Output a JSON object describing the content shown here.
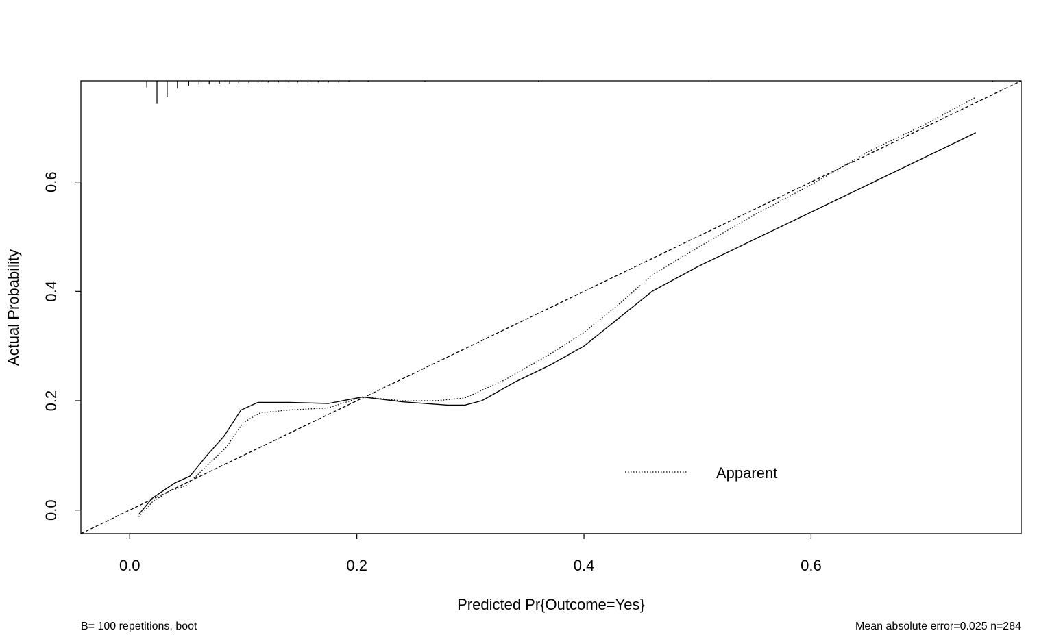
{
  "chart_data": {
    "type": "line",
    "title": "",
    "xlabel": "Predicted Pr{Outcome=Yes}",
    "ylabel": "Actual Probability",
    "xlim": [
      -0.043,
      0.785
    ],
    "ylim": [
      -0.043,
      0.785
    ],
    "x_ticks": [
      0.0,
      0.2,
      0.4,
      0.6
    ],
    "x_tick_labels": [
      "0.0",
      "0.2",
      "0.4",
      "0.6"
    ],
    "y_ticks": [
      0.0,
      0.2,
      0.4,
      0.6
    ],
    "y_tick_labels": [
      "0.0",
      "0.2",
      "0.4",
      "0.6"
    ],
    "grid": false,
    "legend_position": "bottom-right",
    "legend": [
      {
        "label": "Apparent",
        "line_style": "dotted"
      }
    ],
    "ideal_line": {
      "style": "dashed",
      "x": [
        -0.043,
        0.785
      ],
      "y": [
        -0.043,
        0.785
      ]
    },
    "series": [
      {
        "line_style": "dotted",
        "x": [
          0.008,
          0.02,
          0.035,
          0.05,
          0.07,
          0.085,
          0.1,
          0.115,
          0.14,
          0.175,
          0.205,
          0.24,
          0.27,
          0.295,
          0.33,
          0.37,
          0.4,
          0.43,
          0.46,
          0.5,
          0.55,
          0.6,
          0.65,
          0.7,
          0.745
        ],
        "y": [
          -0.012,
          0.015,
          0.035,
          0.045,
          0.085,
          0.115,
          0.16,
          0.178,
          0.183,
          0.187,
          0.207,
          0.2,
          0.2,
          0.205,
          0.238,
          0.285,
          0.325,
          0.375,
          0.43,
          0.48,
          0.54,
          0.595,
          0.655,
          0.705,
          0.755
        ]
      },
      {
        "line_style": "solid",
        "x": [
          0.008,
          0.02,
          0.04,
          0.053,
          0.068,
          0.083,
          0.098,
          0.113,
          0.14,
          0.175,
          0.205,
          0.24,
          0.28,
          0.295,
          0.31,
          0.34,
          0.37,
          0.4,
          0.43,
          0.46,
          0.5,
          0.55,
          0.6,
          0.65,
          0.7,
          0.745
        ],
        "y": [
          -0.008,
          0.022,
          0.05,
          0.062,
          0.1,
          0.135,
          0.183,
          0.197,
          0.197,
          0.195,
          0.207,
          0.198,
          0.192,
          0.192,
          0.2,
          0.235,
          0.265,
          0.3,
          0.35,
          0.4,
          0.445,
          0.495,
          0.545,
          0.595,
          0.645,
          0.69
        ]
      }
    ],
    "rug_x": [
      0.015,
      0.024,
      0.033,
      0.042,
      0.052,
      0.061,
      0.07,
      0.079,
      0.088,
      0.096,
      0.105,
      0.113,
      0.122,
      0.131,
      0.14,
      0.148,
      0.157,
      0.166,
      0.175,
      0.184,
      0.193,
      0.21,
      0.26,
      0.36,
      0.51,
      0.76
    ],
    "rug_heights": [
      0.012,
      0.042,
      0.03,
      0.014,
      0.009,
      0.007,
      0.006,
      0.005,
      0.005,
      0.004,
      0.004,
      0.004,
      0.003,
      0.003,
      0.003,
      0.003,
      0.003,
      0.003,
      0.003,
      0.003,
      0.002,
      0.002,
      0.002,
      0.002,
      0.002,
      0.002
    ]
  },
  "footnotes": {
    "left": "B= 100 repetitions, boot",
    "right": "Mean absolute error=0.025 n=284"
  }
}
